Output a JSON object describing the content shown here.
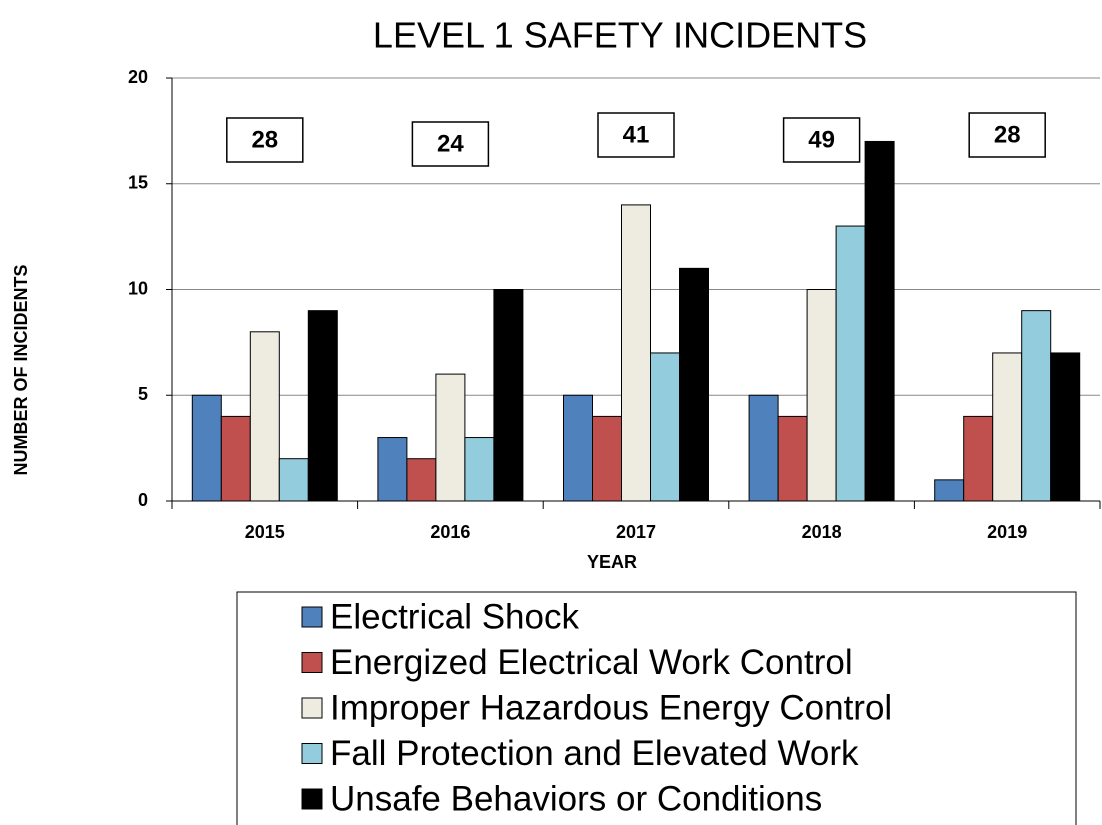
{
  "chart_data": {
    "type": "bar",
    "title": "LEVEL 1 SAFETY INCIDENTS",
    "x_label": "YEAR",
    "y_label": "NUMBER OF INCIDENTS",
    "categories": [
      "2015",
      "2016",
      "2017",
      "2018",
      "2019"
    ],
    "series": [
      {
        "name": "Electrical Shock",
        "color": "#4f81bd",
        "values": [
          5,
          3,
          5,
          5,
          1
        ]
      },
      {
        "name": "Energized Electrical Work Control",
        "color": "#c0504d",
        "values": [
          4,
          2,
          4,
          4,
          4
        ]
      },
      {
        "name": "Improper Hazardous Energy Control",
        "color": "#eeece1",
        "values": [
          8,
          6,
          14,
          10,
          7
        ]
      },
      {
        "name": "Fall Protection and Elevated Work",
        "color": "#93cddd",
        "values": [
          2,
          3,
          7,
          13,
          9
        ]
      },
      {
        "name": "Unsafe Behaviors or Conditions",
        "color": "#000000",
        "values": [
          9,
          10,
          11,
          17,
          7
        ]
      }
    ],
    "totals": [
      28,
      24,
      41,
      49,
      28
    ],
    "ylim": [
      0,
      20
    ],
    "yticks": [
      0,
      5,
      10,
      15,
      20
    ],
    "grid": true,
    "legend": "bottom"
  }
}
